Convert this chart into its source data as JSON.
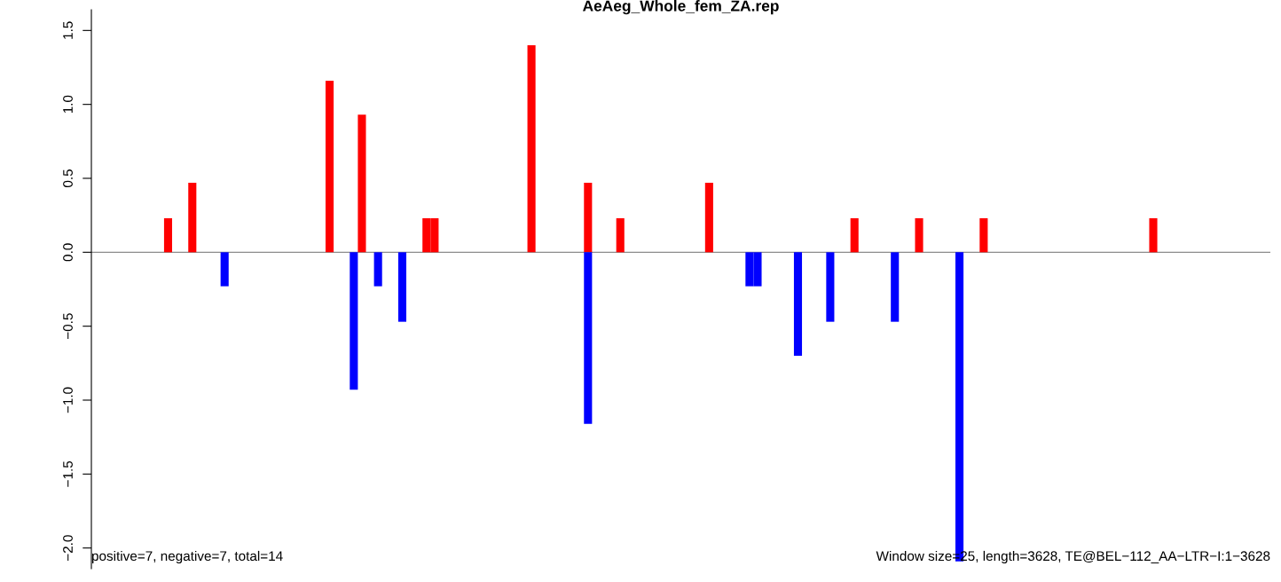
{
  "chart_data": {
    "type": "bar",
    "title": "AeAeg_Whole_fem_ZA.rep",
    "categories": [
      null,
      null,
      null,
      null,
      null,
      null,
      null,
      null,
      null,
      null,
      null,
      null,
      null,
      null,
      null,
      null,
      null,
      null,
      null,
      null,
      null,
      null,
      null,
      null,
      null,
      null,
      null,
      null,
      null,
      null,
      null,
      null,
      null,
      null,
      null,
      null,
      null,
      null,
      null,
      null,
      null,
      null,
      null,
      null,
      null,
      null,
      null,
      null,
      null,
      null,
      null,
      null,
      null,
      null,
      null,
      null,
      null,
      null,
      null,
      null,
      null,
      null,
      null,
      null,
      null,
      null,
      null,
      null,
      null,
      null,
      null,
      null,
      null,
      null,
      null,
      null,
      null,
      null,
      null,
      null,
      null,
      null,
      null,
      null,
      null,
      null,
      null,
      null,
      null,
      null,
      null,
      null,
      null,
      null,
      null,
      null,
      null,
      null,
      null,
      null,
      null,
      null,
      null,
      null,
      null,
      null,
      null,
      null,
      null,
      null,
      null,
      null,
      null,
      null,
      null,
      null,
      null,
      null,
      null,
      null,
      null,
      null,
      null,
      null,
      null,
      null,
      null,
      null,
      null,
      null,
      null,
      null,
      null,
      null,
      null,
      null,
      null,
      null,
      null,
      null,
      null,
      null,
      null,
      null,
      null,
      null
    ],
    "series": [
      {
        "color": "#ff0000",
        "values": [
          null,
          null,
          null,
          null,
          null,
          null,
          null,
          null,
          null,
          0.23,
          null,
          null,
          0.47,
          null,
          null,
          null,
          null,
          null,
          null,
          null,
          null,
          null,
          null,
          null,
          null,
          null,
          null,
          null,
          null,
          1.16,
          null,
          null,
          null,
          0.93,
          null,
          null,
          null,
          null,
          null,
          null,
          null,
          0.23,
          0.23,
          null,
          null,
          null,
          null,
          null,
          null,
          null,
          null,
          null,
          null,
          null,
          1.4,
          null,
          null,
          null,
          null,
          null,
          null,
          0.47,
          null,
          null,
          null,
          0.23,
          null,
          null,
          null,
          null,
          null,
          null,
          null,
          null,
          null,
          null,
          0.47,
          null,
          null,
          null,
          null,
          null,
          null,
          null,
          null,
          null,
          null,
          null,
          null,
          null,
          null,
          null,
          null,
          null,
          0.23,
          null,
          null,
          null,
          null,
          null,
          null,
          null,
          0.23,
          null,
          null,
          null,
          null,
          null,
          null,
          null,
          0.23,
          null,
          null,
          null,
          null,
          null,
          null,
          null,
          null,
          null,
          null,
          null,
          null,
          null,
          null,
          null,
          null,
          null,
          null,
          null,
          null,
          0.23,
          null,
          null,
          null,
          null,
          null,
          null,
          null,
          null,
          null,
          null,
          null,
          null,
          null,
          null
        ]
      },
      {
        "color": "#0000ff",
        "values": [
          null,
          null,
          null,
          null,
          null,
          null,
          null,
          null,
          null,
          null,
          null,
          null,
          null,
          null,
          null,
          null,
          -0.23,
          null,
          null,
          null,
          null,
          null,
          null,
          null,
          null,
          null,
          null,
          null,
          null,
          null,
          null,
          null,
          -0.93,
          null,
          null,
          -0.23,
          null,
          null,
          -0.47,
          null,
          null,
          null,
          null,
          null,
          null,
          null,
          null,
          null,
          null,
          null,
          null,
          null,
          null,
          null,
          null,
          null,
          null,
          null,
          null,
          null,
          null,
          -1.16,
          null,
          null,
          null,
          null,
          null,
          null,
          null,
          null,
          null,
          null,
          null,
          null,
          null,
          null,
          null,
          null,
          null,
          null,
          null,
          -0.23,
          -0.23,
          null,
          null,
          null,
          null,
          -0.7,
          null,
          null,
          null,
          -0.47,
          null,
          null,
          null,
          null,
          null,
          null,
          null,
          -0.47,
          null,
          null,
          null,
          null,
          null,
          null,
          null,
          -2.09,
          null,
          null,
          null,
          null,
          null,
          null,
          null,
          null,
          null,
          null,
          null,
          null,
          null,
          null,
          null,
          null,
          null,
          null,
          null,
          null,
          null,
          null,
          null,
          null,
          null,
          null,
          null,
          null,
          null,
          null,
          null,
          null,
          null,
          null,
          null,
          null,
          null,
          null
        ]
      }
    ],
    "ylim": [
      -2.14,
      1.64
    ],
    "yticks": [
      {
        "value": -2.0,
        "label": "−2.0"
      },
      {
        "value": -1.5,
        "label": "−1.5"
      },
      {
        "value": -1.0,
        "label": "−1.0"
      },
      {
        "value": -0.5,
        "label": "−0.5"
      },
      {
        "value": 0.0,
        "label": "0.0"
      },
      {
        "value": 0.5,
        "label": "0.5"
      },
      {
        "value": 1.0,
        "label": "1.0"
      },
      {
        "value": 1.5,
        "label": "1.5"
      }
    ],
    "tick_labels": "y",
    "ref_lines": [
      {
        "axis": "y",
        "value": 0,
        "color": "#8c8c8c"
      }
    ],
    "annotations": [
      "positive=7, negative=7, total=14",
      "Window size=25, length=3628, TE@BEL−112_AA−LTR−I:1−3628"
    ]
  }
}
